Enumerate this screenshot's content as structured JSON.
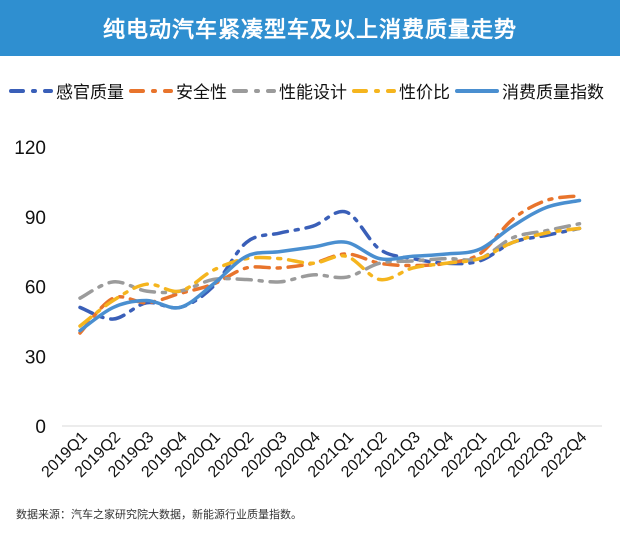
{
  "title": "纯电动汽车紧凑型车及以上消费质量走势",
  "source": "数据来源：汽车之家研究院大数据，新能源行业质量指数。",
  "chart_data": {
    "type": "line",
    "title": "纯电动汽车紧凑型车及以上消费质量走势",
    "categories": [
      "2019Q1",
      "2019Q2",
      "2019Q3",
      "2019Q4",
      "2020Q1",
      "2020Q2",
      "2020Q3",
      "2020Q4",
      "2021Q1",
      "2021Q2",
      "2021Q3",
      "2021Q4",
      "2022Q1",
      "2022Q2",
      "2022Q3",
      "2022Q4"
    ],
    "ylim": [
      0,
      120
    ],
    "yticks": [
      "0",
      "30",
      "60",
      "90",
      "120"
    ],
    "grid": false,
    "legend": "top",
    "series": [
      {
        "name": "感官质量",
        "color": "#3a5fb8",
        "dash": "dashdot",
        "values": [
          51,
          46,
          53,
          51,
          60,
          79,
          83,
          86,
          92,
          76,
          72,
          70,
          71,
          79,
          82,
          85
        ]
      },
      {
        "name": "安全性",
        "color": "#e8742c",
        "dash": "dashdot",
        "values": [
          40,
          55,
          53,
          57,
          61,
          68,
          68,
          70,
          74,
          70,
          69,
          70,
          74,
          89,
          97,
          99
        ]
      },
      {
        "name": "性能设计",
        "color": "#9b9b9b",
        "dash": "dashdot",
        "values": [
          55,
          62,
          58,
          58,
          63,
          63,
          62,
          65,
          64,
          70,
          71,
          72,
          72,
          81,
          84,
          87
        ]
      },
      {
        "name": "性价比",
        "color": "#f5b51e",
        "dash": "dashdot",
        "values": [
          43,
          54,
          61,
          58,
          67,
          72,
          72,
          70,
          73,
          63,
          68,
          70,
          72,
          79,
          83,
          85
        ]
      },
      {
        "name": "消费质量指数",
        "color": "#4a8fd0",
        "dash": "solid",
        "values": [
          41,
          51,
          54,
          51,
          61,
          73,
          75,
          77,
          79,
          72,
          73,
          74,
          76,
          86,
          94,
          97
        ]
      }
    ]
  }
}
